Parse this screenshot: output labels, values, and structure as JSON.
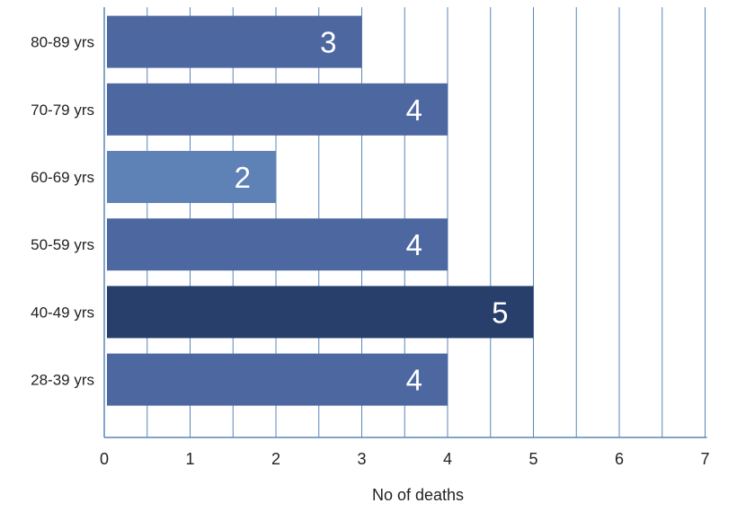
{
  "chart_data": {
    "type": "bar",
    "orientation": "horizontal",
    "title": "",
    "xlabel": "No of deaths",
    "ylabel": "",
    "xlim": [
      0,
      7
    ],
    "x_ticks": [
      0,
      1,
      2,
      3,
      4,
      5,
      6,
      7
    ],
    "grid": "vertical lines at 0.5 intervals",
    "legend": "none",
    "categories": [
      "80-89 yrs",
      "70-79 yrs",
      "60-69 yrs",
      "50-59 yrs",
      "40-49 yrs",
      "28-39 yrs"
    ],
    "values": [
      3,
      4,
      2,
      4,
      5,
      4
    ],
    "data_labels": [
      "3",
      "4",
      "2",
      "4",
      "5",
      "4"
    ],
    "bar_colors": [
      "#4d68a1",
      "#4d68a1",
      "#5f82b6",
      "#4d68a1",
      "#283f6b",
      "#4d68a1"
    ],
    "grid_color": "#5b86b8",
    "axis_color": "#5b86b8"
  }
}
